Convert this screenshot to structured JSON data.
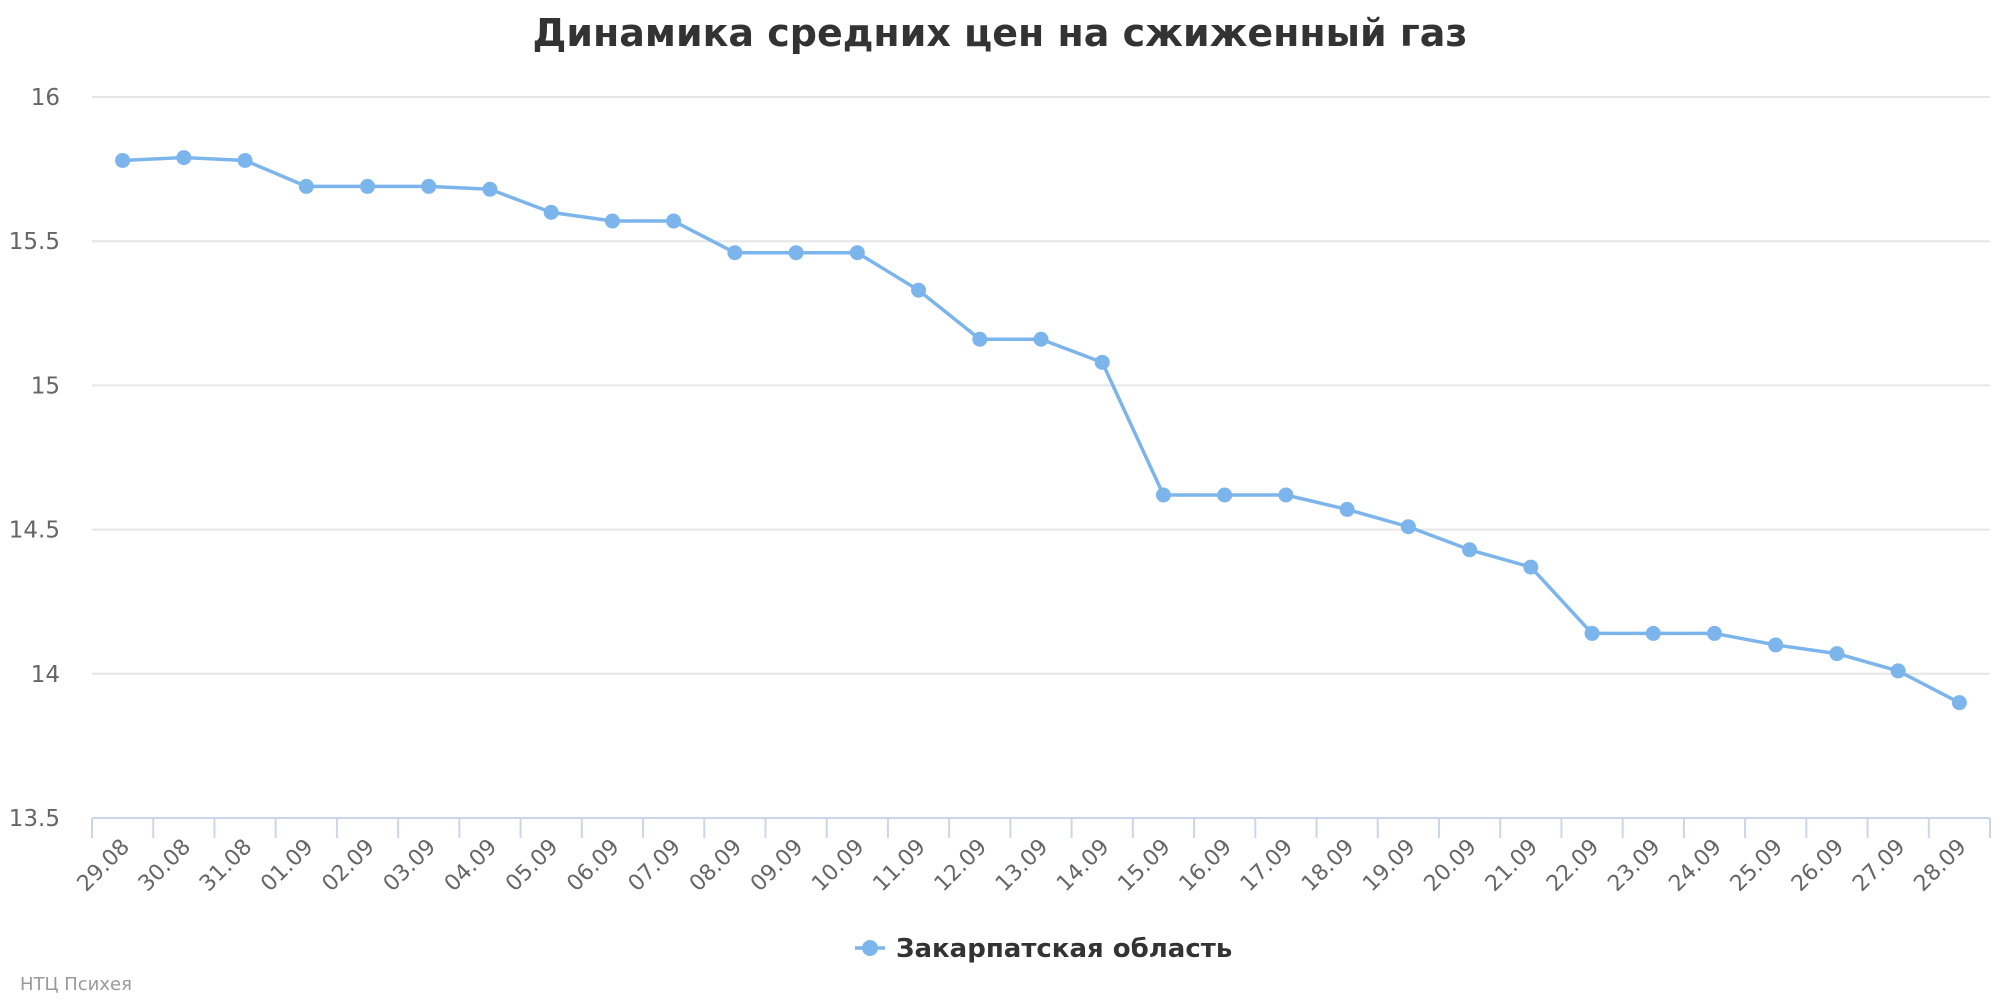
{
  "chart_data": {
    "type": "line",
    "title": "Динамика средних цен на сжиженный газ",
    "xlabel": "",
    "ylabel": "",
    "ylim": [
      13.5,
      16
    ],
    "yticks": [
      "16",
      "15.5",
      "15",
      "14.5",
      "14",
      "13.5"
    ],
    "grid": true,
    "legend_position": "bottom-center",
    "categories": [
      "29.08",
      "30.08",
      "31.08",
      "01.09",
      "02.09",
      "03.09",
      "04.09",
      "05.09",
      "06.09",
      "07.09",
      "08.09",
      "09.09",
      "10.09",
      "11.09",
      "12.09",
      "13.09",
      "14.09",
      "15.09",
      "16.09",
      "17.09",
      "18.09",
      "19.09",
      "20.09",
      "21.09",
      "22.09",
      "23.09",
      "24.09",
      "25.09",
      "26.09",
      "27.09",
      "28.09"
    ],
    "series": [
      {
        "name": "Закарпатская область",
        "color": "#7cb5ec",
        "values": [
          15.78,
          15.79,
          15.78,
          15.69,
          15.69,
          15.69,
          15.68,
          15.6,
          15.57,
          15.57,
          15.46,
          15.46,
          15.46,
          15.33,
          15.16,
          15.16,
          15.08,
          14.62,
          14.62,
          14.62,
          14.57,
          14.51,
          14.43,
          14.37,
          14.14,
          14.14,
          14.14,
          14.1,
          14.07,
          14.01,
          13.9
        ]
      }
    ]
  },
  "credits": "НТЦ Психея"
}
